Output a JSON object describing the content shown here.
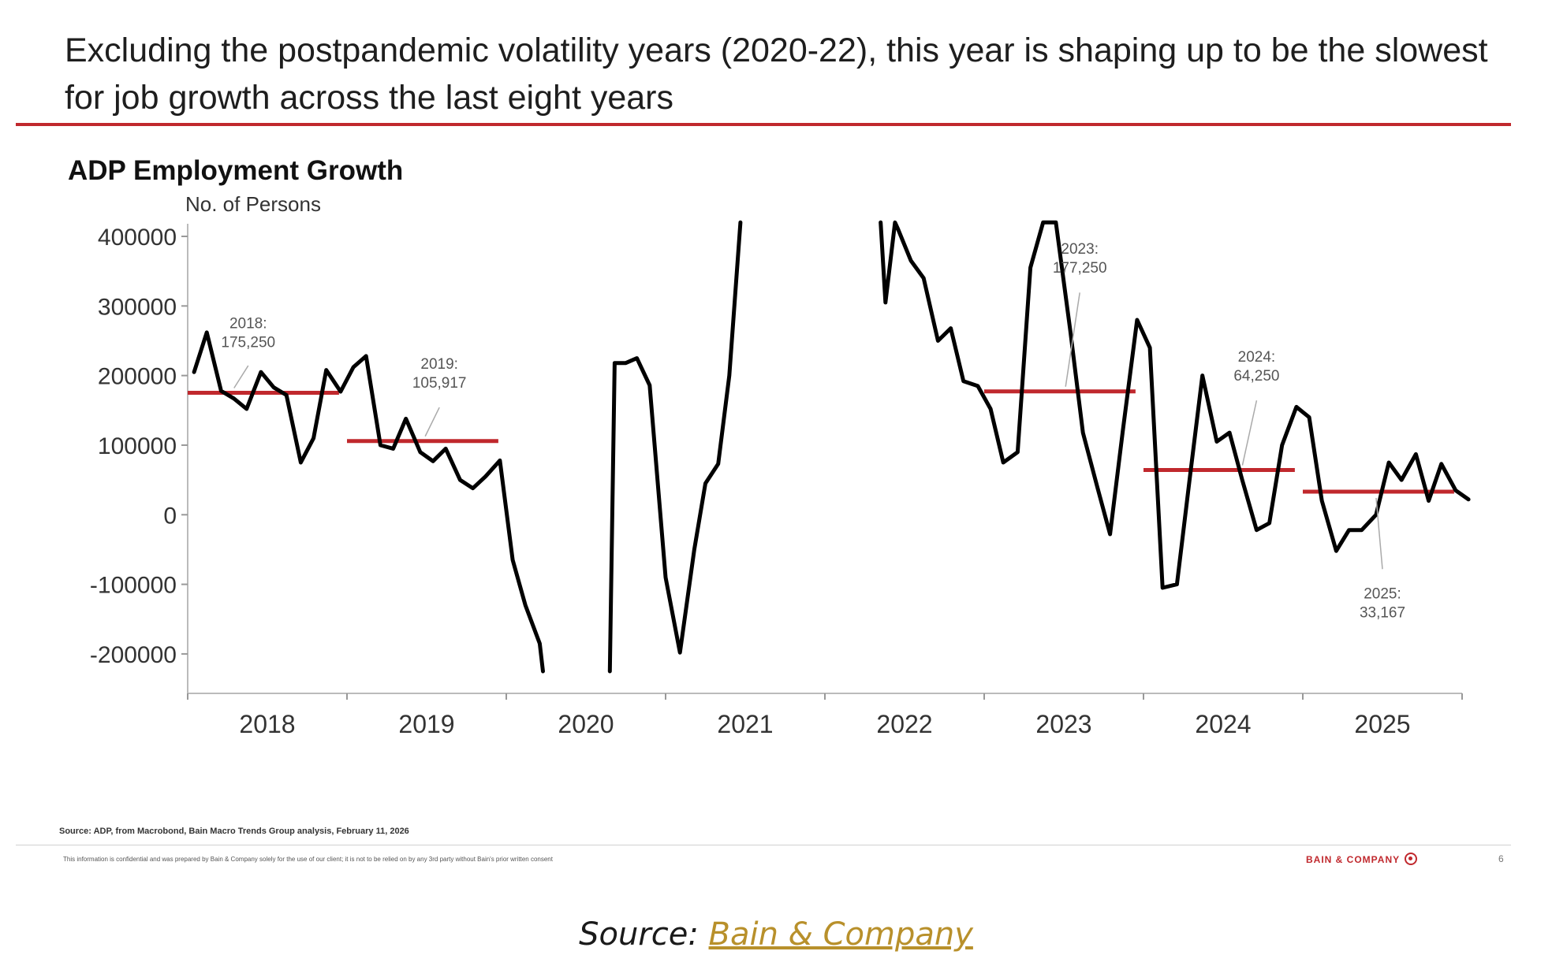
{
  "headline": "Excluding the postpandemic volatility years (2020-22), this year is shaping up to be the slowest for job growth across the last eight years",
  "colors": {
    "accent": "#c0282d",
    "line": "#000000",
    "averages": "#c0282d",
    "link": "#b8902b"
  },
  "chart_data": {
    "type": "line",
    "title": "ADP Employment Growth",
    "ylabel": "No. of Persons",
    "ylim": [
      -225000,
      400000
    ],
    "yticks": [
      400000,
      300000,
      200000,
      100000,
      0,
      -100000,
      -200000
    ],
    "ytick_labels": [
      "400000",
      "300000",
      "200000",
      "100000",
      "0",
      "-100000",
      "-200000"
    ],
    "xlim": [
      2018.0,
      2026.0
    ],
    "xticks": [
      2018.5,
      2019.5,
      2020.5,
      2021.5,
      2022.5,
      2023.5,
      2024.5,
      2025.5
    ],
    "xtick_labels": [
      "2018",
      "2019",
      "2020",
      "2021",
      "2022",
      "2023",
      "2024",
      "2025"
    ],
    "grid": false,
    "series": [
      {
        "values": [
          [
            2018.04,
            205000
          ],
          [
            2018.12,
            262000
          ],
          [
            2018.21,
            178000
          ],
          [
            2018.29,
            167000
          ],
          [
            2018.37,
            152000
          ],
          [
            2018.46,
            205000
          ],
          [
            2018.54,
            183000
          ],
          [
            2018.62,
            172000
          ],
          [
            2018.71,
            75000
          ],
          [
            2018.79,
            110000
          ],
          [
            2018.87,
            208000
          ],
          [
            2018.96,
            177000
          ],
          [
            2019.04,
            212000
          ],
          [
            2019.12,
            228000
          ],
          [
            2019.21,
            100000
          ],
          [
            2019.29,
            95000
          ],
          [
            2019.37,
            138000
          ],
          [
            2019.46,
            90000
          ],
          [
            2019.54,
            77000
          ],
          [
            2019.62,
            95000
          ],
          [
            2019.71,
            50000
          ],
          [
            2019.79,
            38000
          ],
          [
            2019.87,
            55000
          ],
          [
            2019.96,
            78000
          ],
          [
            2020.04,
            -65000
          ],
          [
            2020.12,
            -130000
          ],
          [
            2020.21,
            -185000
          ],
          [
            2020.23,
            -225000
          ],
          [
            null,
            null
          ],
          [
            2020.65,
            -225000
          ],
          [
            2020.68,
            218000
          ],
          [
            2020.75,
            218000
          ],
          [
            2020.82,
            225000
          ],
          [
            2020.9,
            186000
          ],
          [
            2021.0,
            -90000
          ],
          [
            2021.09,
            -198000
          ],
          [
            2021.18,
            -50000
          ],
          [
            2021.25,
            45000
          ],
          [
            2021.33,
            73000
          ],
          [
            2021.4,
            200000
          ],
          [
            2021.47,
            420000
          ],
          [
            null,
            null
          ],
          [
            2022.35,
            420000
          ],
          [
            2022.38,
            305000
          ],
          [
            2022.44,
            420000
          ],
          [
            2022.46,
            410000
          ],
          [
            2022.54,
            365000
          ],
          [
            2022.62,
            340000
          ],
          [
            2022.71,
            250000
          ],
          [
            2022.79,
            268000
          ],
          [
            2022.87,
            192000
          ],
          [
            2022.96,
            185000
          ],
          [
            2023.04,
            152000
          ],
          [
            2023.12,
            75000
          ],
          [
            2023.21,
            90000
          ],
          [
            2023.29,
            355000
          ],
          [
            2023.37,
            420000
          ],
          [
            2023.45,
            420000
          ],
          [
            2023.54,
            265000
          ],
          [
            2023.62,
            118000
          ],
          [
            2023.71,
            40000
          ],
          [
            2023.79,
            -28000
          ],
          [
            2023.87,
            120000
          ],
          [
            2023.96,
            280000
          ],
          [
            2024.04,
            240000
          ],
          [
            2024.12,
            -105000
          ],
          [
            2024.21,
            -100000
          ],
          [
            2024.29,
            52000
          ],
          [
            2024.37,
            200000
          ],
          [
            2024.46,
            105000
          ],
          [
            2024.54,
            118000
          ],
          [
            2024.62,
            50000
          ],
          [
            2024.71,
            -22000
          ],
          [
            2024.79,
            -12000
          ],
          [
            2024.87,
            100000
          ],
          [
            2024.96,
            155000
          ],
          [
            2025.04,
            140000
          ],
          [
            2025.12,
            20000
          ],
          [
            2025.21,
            -52000
          ],
          [
            2025.29,
            -22000
          ],
          [
            2025.37,
            -22000
          ],
          [
            2025.46,
            0
          ],
          [
            2025.54,
            75000
          ],
          [
            2025.62,
            50000
          ],
          [
            2025.71,
            87000
          ],
          [
            2025.79,
            20000
          ],
          [
            2025.87,
            73000
          ],
          [
            2025.96,
            35000
          ],
          [
            2026.04,
            22000
          ]
        ]
      }
    ],
    "averages": [
      {
        "year": "2018",
        "value": 175250,
        "label": "2018:\n175,250"
      },
      {
        "year": "2019",
        "value": 105917,
        "label": "2019:\n105,917"
      },
      {
        "year": "2023",
        "value": 177250,
        "label": "2023:\n177,250"
      },
      {
        "year": "2024",
        "value": 64250,
        "label": "2024:\n64,250"
      },
      {
        "year": "2025",
        "value": 33167,
        "label": "2025:\n33,167"
      }
    ],
    "source": "Source: ADP, from Macrobond, Bain Macro Trends Group analysis, February 11, 2026"
  },
  "footer": {
    "disclaimer": "This information is confidential and was prepared by Bain & Company solely for the use of our client; it is not to be relied on by any 3rd party without Bain's prior written consent",
    "brand": "BAIN & COMPANY",
    "page_number": "6"
  },
  "caption": {
    "prefix": "Source: ",
    "link_text": "Bain & Company"
  }
}
